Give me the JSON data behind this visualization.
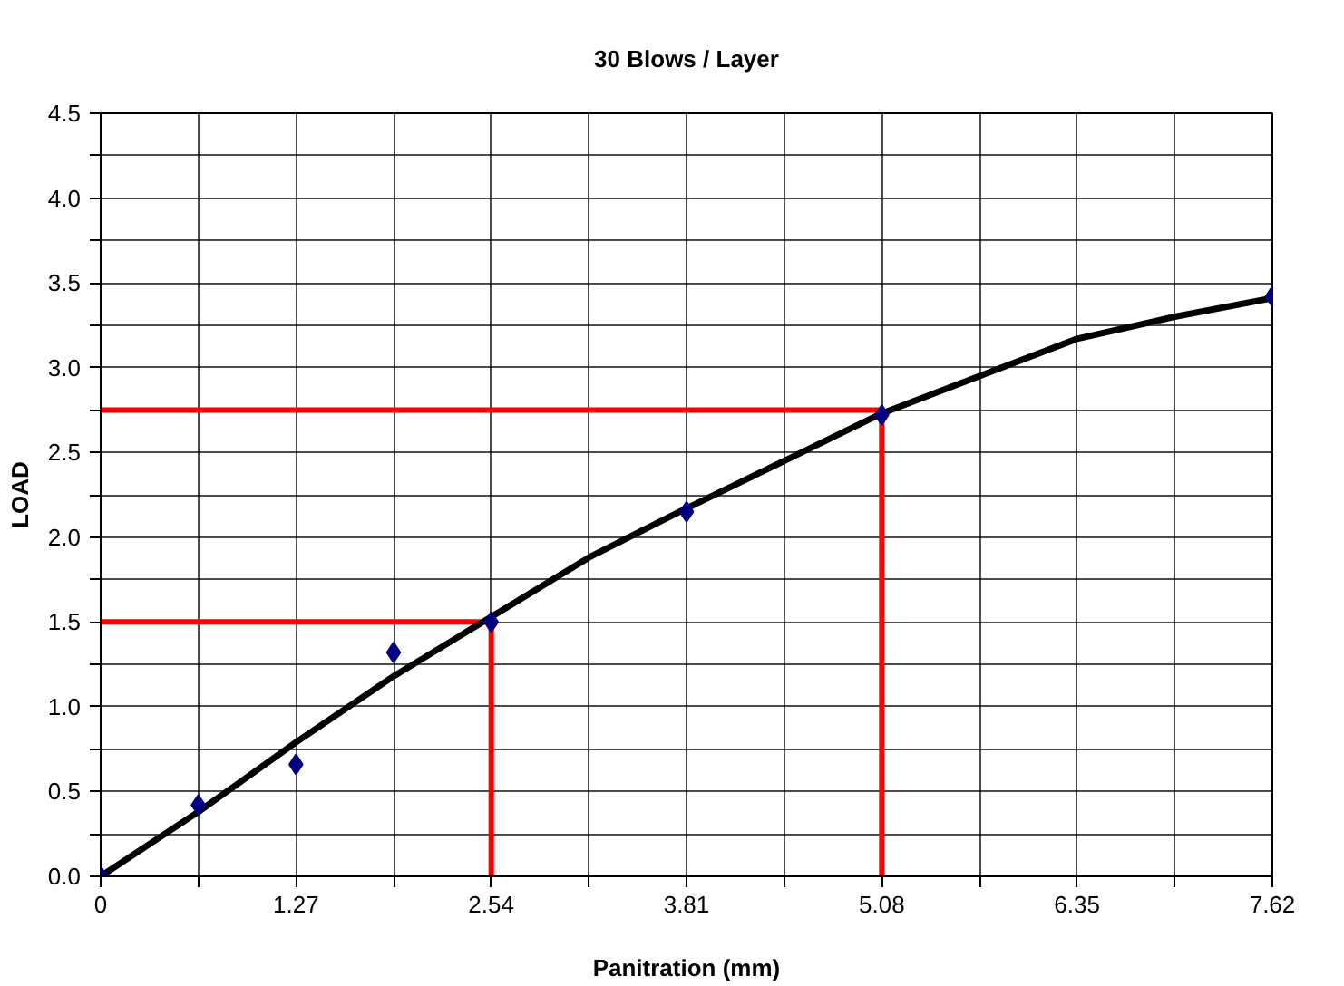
{
  "chart_data": {
    "type": "scatter",
    "title": "30 Blows / Layer",
    "xlabel": "Panitration (mm)",
    "ylabel": "LOAD",
    "xlim": [
      0,
      7.62
    ],
    "ylim": [
      0,
      4.5
    ],
    "xticks": [
      0,
      {
        "value": 0.635,
        "label": null
      },
      1.27,
      {
        "value": 1.905,
        "label": null
      },
      2.54,
      {
        "value": 3.175,
        "label": null
      },
      3.81,
      {
        "value": 4.445,
        "label": null
      },
      5.08,
      {
        "value": 5.715,
        "label": null
      },
      6.35,
      {
        "value": 6.985,
        "label": null
      },
      7.62
    ],
    "yticks": [
      {
        "value": 0,
        "label": "0.0"
      },
      {
        "value": 0.25,
        "label": null
      },
      {
        "value": 0.5,
        "label": "0.5"
      },
      {
        "value": 0.75,
        "label": null
      },
      {
        "value": 1,
        "label": "1.0"
      },
      {
        "value": 1.25,
        "label": null
      },
      {
        "value": 1.5,
        "label": "1.5"
      },
      {
        "value": 1.75,
        "label": null
      },
      {
        "value": 2,
        "label": "2.0"
      },
      {
        "value": 2.25,
        "label": null
      },
      {
        "value": 2.5,
        "label": "2.5"
      },
      {
        "value": 2.75,
        "label": null
      },
      {
        "value": 3,
        "label": "3.0"
      },
      {
        "value": 3.25,
        "label": null
      },
      {
        "value": 3.5,
        "label": "3.5"
      },
      {
        "value": 3.75,
        "label": null
      },
      {
        "value": 4,
        "label": "4.0"
      },
      {
        "value": 4.25,
        "label": null
      },
      {
        "value": 4.5,
        "label": "4.5"
      }
    ],
    "grid": true,
    "series": [
      {
        "type": "line",
        "color": "#ff0000",
        "x": [
          0,
          2.54,
          2.54
        ],
        "values": [
          1.5,
          1.5,
          0
        ],
        "marker": "none"
      },
      {
        "type": "line",
        "color": "#ff0000",
        "x": [
          0,
          5.08,
          5.08
        ],
        "values": [
          2.75,
          2.75,
          0
        ],
        "marker": "none"
      },
      {
        "type": "line",
        "color": "#000000",
        "x": [
          0,
          0.635,
          1.27,
          1.905,
          2.54,
          3.175,
          3.81,
          4.445,
          5.08,
          5.715,
          6.35,
          6.985,
          7.62
        ],
        "values": [
          0,
          0.38,
          0.79,
          1.18,
          1.53,
          1.88,
          2.17,
          2.45,
          2.73,
          2.95,
          3.17,
          3.3,
          3.41
        ],
        "marker": "none"
      },
      {
        "color": "#000080",
        "x": [
          0,
          0.635,
          1.27,
          1.905,
          2.54,
          3.81,
          5.08,
          7.62
        ],
        "values": [
          0,
          0.42,
          0.66,
          1.32,
          1.5,
          2.15,
          2.72,
          3.42
        ],
        "marker": "diamond"
      }
    ]
  }
}
